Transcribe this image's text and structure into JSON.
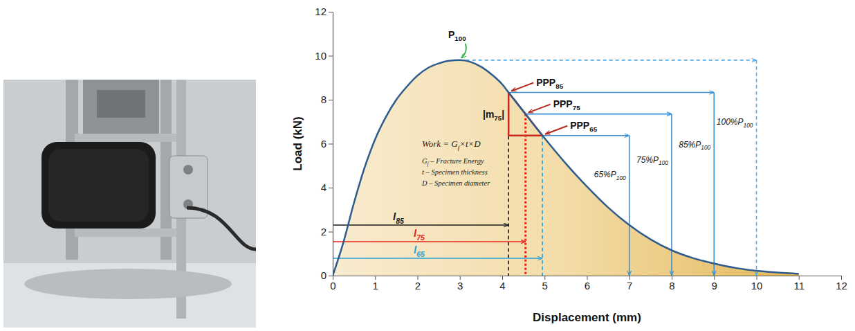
{
  "chart_data": {
    "type": "line",
    "x_label": "Displacement (mm)",
    "y_label": "Load (kN)",
    "x": [
      0,
      0.25,
      0.5,
      0.75,
      1,
      1.25,
      1.5,
      1.75,
      2,
      2.25,
      2.5,
      2.75,
      3,
      3.25,
      3.5,
      3.75,
      4,
      4.15,
      4.55,
      4.75,
      4.95,
      5.5,
      6,
      6.5,
      7,
      7.5,
      8,
      8.5,
      9,
      9.5,
      10,
      10.5,
      11
    ],
    "values": [
      0,
      1.5,
      3.3,
      4.9,
      6.2,
      7.2,
      8.0,
      8.6,
      9.1,
      9.45,
      9.65,
      9.77,
      9.8,
      9.72,
      9.5,
      9.15,
      8.7,
      8.33,
      7.35,
      6.85,
      6.37,
      5.1,
      4.05,
      3.1,
      2.3,
      1.65,
      1.15,
      0.8,
      0.55,
      0.35,
      0.22,
      0.14,
      0.08
    ],
    "color": "#2d5b8c",
    "xlim": [
      0,
      12
    ],
    "xticks": [
      0,
      1,
      2,
      3,
      4,
      5,
      6,
      7,
      8,
      9,
      10,
      11,
      12
    ],
    "ylim": [
      0,
      12
    ],
    "yticks": [
      0,
      2,
      4,
      6,
      8,
      10,
      12
    ],
    "grid": false,
    "peak": {
      "label": [
        {
          "main": "P",
          "sub": "100"
        }
      ],
      "x": 3,
      "y": 9.8,
      "drop_x": 10,
      "level_label": [
        {
          "main": "100%P",
          "sub": "100"
        }
      ]
    },
    "levels": [
      {
        "label": [
          {
            "main": "PPP",
            "sub": "85"
          }
        ],
        "x": 4.15,
        "y": 8.33,
        "drop_x": 9,
        "level_label": [
          {
            "main": "85%P",
            "sub": "100"
          }
        ],
        "length_label": [
          {
            "main": "l",
            "sub": "85"
          }
        ],
        "color": "#1a1a1a"
      },
      {
        "label": [
          {
            "main": "PPP",
            "sub": "75"
          }
        ],
        "x": 4.55,
        "y": 7.35,
        "drop_x": 8,
        "level_label": [
          {
            "main": "75%P",
            "sub": "100"
          }
        ],
        "length_label": [
          {
            "main": "l",
            "sub": "75"
          }
        ],
        "color": "#e8231a"
      },
      {
        "label": [
          {
            "main": "PPP",
            "sub": "65"
          }
        ],
        "x": 4.95,
        "y": 6.37,
        "drop_x": 7,
        "level_label": [
          {
            "main": "65%P",
            "sub": "100"
          }
        ],
        "length_label": [
          {
            "main": "l",
            "sub": "65"
          }
        ],
        "color": "#29a3dc"
      }
    ],
    "slope_label": [
      {
        "main": "|m",
        "sub": "75"
      },
      {
        "main": "|"
      }
    ],
    "formula": [
      [
        {
          "main": "Work = G",
          "sub": "f"
        },
        {
          "main": "×t×D"
        }
      ],
      [
        {
          "main": "G",
          "sub": "f"
        },
        {
          "main": " – Fracture Energy"
        }
      ],
      [
        {
          "main": "t – Specimen thickness"
        }
      ],
      [
        {
          "main": "D – Specimen diameter"
        }
      ]
    ]
  }
}
